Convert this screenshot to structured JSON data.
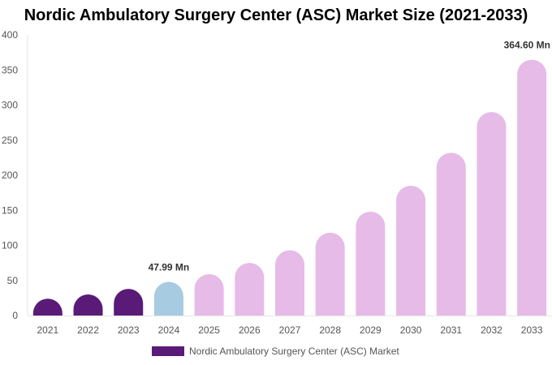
{
  "chart_data": {
    "type": "bar",
    "title": "Nordic Ambulatory Surgery Center (ASC) Market Size (2021-2033)",
    "categories": [
      "2021",
      "2022",
      "2023",
      "2024",
      "2025",
      "2026",
      "2027",
      "2028",
      "2029",
      "2030",
      "2031",
      "2032",
      "2033"
    ],
    "series": [
      {
        "name": "Nordic Ambulatory Surgery Center (ASC) Market",
        "values": [
          24,
          30,
          38,
          47.99,
          59,
          75,
          93,
          118,
          148,
          185,
          232,
          290,
          364.6
        ]
      }
    ],
    "data_labels": [
      {
        "category": "2024",
        "text": "47.99 Mn"
      },
      {
        "category": "2033",
        "text": "364.60 Mn"
      }
    ],
    "ylim": [
      0,
      400
    ],
    "yticks": [
      0,
      50,
      100,
      150,
      200,
      250,
      300,
      350,
      400
    ],
    "grid": false,
    "legend": "bottom",
    "colors": {
      "historical": "#5a1a78",
      "base_year": "#a7cbe0",
      "forecast": "#e6bbe7",
      "legend_swatch": "#5a1a78"
    },
    "period_by_category": [
      "historical",
      "historical",
      "historical",
      "base_year",
      "forecast",
      "forecast",
      "forecast",
      "forecast",
      "forecast",
      "forecast",
      "forecast",
      "forecast",
      "forecast"
    ]
  }
}
